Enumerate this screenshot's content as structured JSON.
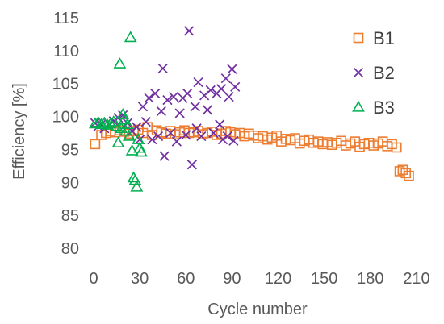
{
  "chart_data": {
    "type": "scatter",
    "title": "",
    "xlabel": "Cycle number",
    "ylabel": "Efficiency [%]",
    "xlim": [
      0,
      210
    ],
    "ylim": [
      80,
      115
    ],
    "xticks": [
      0,
      30,
      60,
      90,
      120,
      150,
      180,
      210
    ],
    "yticks": [
      80,
      85,
      90,
      95,
      100,
      105,
      110,
      115
    ],
    "grid": false,
    "legend_position": "top-right",
    "series": [
      {
        "name": "B1",
        "marker": "square",
        "color": "#ED7D31",
        "x": [
          1,
          5,
          8,
          11,
          14,
          17,
          20,
          23,
          26,
          29,
          32,
          35,
          38,
          41,
          44,
          47,
          50,
          53,
          56,
          59,
          62,
          65,
          68,
          71,
          74,
          77,
          80,
          83,
          86,
          89,
          92,
          95,
          98,
          101,
          104,
          107,
          110,
          113,
          116,
          119,
          122,
          125,
          128,
          131,
          134,
          137,
          140,
          143,
          146,
          149,
          152,
          155,
          158,
          161,
          164,
          167,
          170,
          173,
          176,
          179,
          182,
          185,
          188,
          191,
          194,
          197,
          199,
          201,
          203,
          205
        ],
        "y": [
          95.8,
          97.2,
          97.5,
          97.8,
          97.6,
          97.9,
          97.7,
          97.4,
          97.8,
          98.0,
          97.5,
          98.4,
          97.2,
          97.9,
          97.6,
          97.4,
          97.8,
          97.3,
          97.6,
          97.9,
          97.5,
          97.6,
          97.8,
          97.3,
          97.5,
          97.7,
          97.2,
          97.4,
          97.8,
          97.6,
          97.3,
          97.5,
          97.0,
          97.4,
          97.1,
          96.7,
          97.0,
          96.5,
          96.8,
          97.1,
          96.2,
          96.6,
          96.4,
          96.7,
          95.9,
          96.3,
          96.5,
          96.0,
          96.2,
          95.8,
          96.1,
          95.7,
          96.0,
          96.3,
          95.6,
          95.9,
          96.2,
          95.4,
          95.8,
          96.0,
          95.6,
          95.9,
          96.2,
          95.5,
          95.8,
          95.3,
          91.7,
          91.9,
          91.4,
          91.0
        ]
      },
      {
        "name": "B2",
        "marker": "x",
        "color": "#7030A0",
        "x": [
          1,
          3,
          5,
          7,
          10,
          13,
          16,
          19,
          22,
          25,
          28,
          30,
          32,
          34,
          36,
          38,
          40,
          42,
          44,
          45,
          46,
          48,
          50,
          52,
          54,
          56,
          58,
          60,
          61,
          62,
          64,
          66,
          67,
          68,
          70,
          72,
          74,
          76,
          78,
          80,
          82,
          83,
          84,
          86,
          87,
          88,
          90,
          91,
          92
        ],
        "y": [
          99.0,
          98.5,
          98.8,
          98.2,
          98.9,
          99.3,
          99.8,
          100.2,
          99.0,
          97.8,
          98.4,
          96.5,
          101.5,
          99.2,
          102.8,
          96.5,
          103.5,
          97.0,
          100.8,
          107.3,
          94.0,
          102.5,
          97.5,
          103.0,
          96.2,
          100.5,
          102.8,
          97.2,
          103.5,
          113.0,
          92.7,
          101.5,
          98.2,
          105.2,
          97.0,
          103.2,
          101.0,
          104.0,
          97.5,
          103.5,
          98.8,
          104.2,
          96.5,
          105.8,
          97.0,
          103.0,
          107.2,
          96.3,
          104.5
        ]
      },
      {
        "name": "B3",
        "marker": "triangle",
        "color": "#00B050",
        "x": [
          1,
          3,
          5,
          7,
          9,
          11,
          13,
          15,
          16,
          17,
          18,
          19,
          20,
          21,
          22,
          23,
          24,
          25,
          26,
          27,
          28,
          29,
          30,
          31
        ],
        "y": [
          98.9,
          99.1,
          98.8,
          99.0,
          98.7,
          98.9,
          99.2,
          98.5,
          96.0,
          108.0,
          98.2,
          100.3,
          99.5,
          97.8,
          98.8,
          97.0,
          112.0,
          94.8,
          90.7,
          90.3,
          89.3,
          96.5,
          95.2,
          94.6
        ]
      }
    ]
  }
}
